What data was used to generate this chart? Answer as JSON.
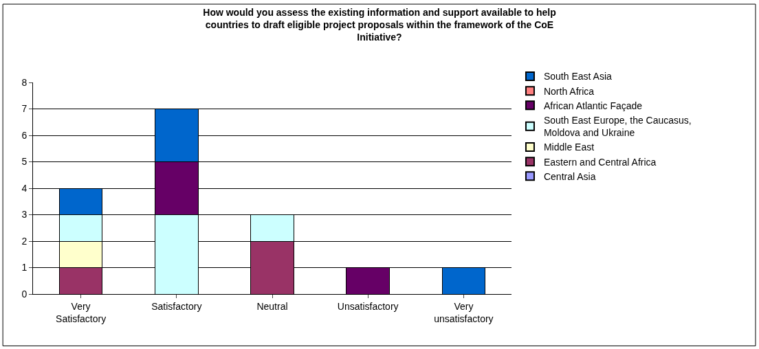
{
  "chart_data": {
    "type": "bar",
    "stacked": true,
    "title": "How would you assess the existing information and support available to help countries to draft eligible project proposals within the framework of the CoE Initiative?",
    "categories": [
      "Very Satisfactory",
      "Satisfactory",
      "Neutral",
      "Unsatisfactory",
      "Very unsatisfactory"
    ],
    "series": [
      {
        "name": "Central Asia",
        "color": "#9999ff",
        "values": [
          0,
          0,
          0,
          0,
          0
        ]
      },
      {
        "name": "Eastern and Central Africa",
        "color": "#993366",
        "values": [
          1,
          0,
          2,
          0,
          0
        ]
      },
      {
        "name": "Middle East",
        "color": "#ffffcc",
        "values": [
          1,
          0,
          0,
          0,
          0
        ]
      },
      {
        "name": "South East Europe, the Caucasus, Moldova and Ukraine",
        "color": "#ccffff",
        "values": [
          1,
          3,
          1,
          0,
          0
        ]
      },
      {
        "name": "African Atlantic Façade",
        "color": "#660066",
        "values": [
          0,
          2,
          0,
          1,
          0
        ]
      },
      {
        "name": "North Africa",
        "color": "#ff8080",
        "values": [
          0,
          0,
          0,
          0,
          0
        ]
      },
      {
        "name": "South East Asia",
        "color": "#0066cc",
        "values": [
          1,
          2,
          0,
          0,
          1
        ]
      }
    ],
    "ylim": [
      0,
      8
    ],
    "yticks": [
      0,
      1,
      2,
      3,
      4,
      5,
      6,
      7,
      8
    ],
    "grid": "y",
    "legend": "right"
  }
}
